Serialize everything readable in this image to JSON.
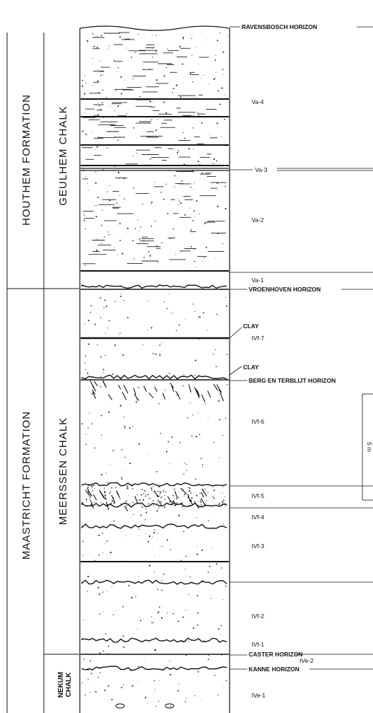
{
  "formations": {
    "houthem": "HOUTHEM FORMATION",
    "maastricht": "MAASTRICHT FORMATION"
  },
  "members": {
    "geulhem": "GEULHEM CHALK",
    "meerssen": "MEERSSEN CHALK",
    "nekum_line1": "NEKUM",
    "nekum_line2": "CHALK"
  },
  "horizons": {
    "ravensbosch": "RAVENSBOSCH HORIZON",
    "vroenhoven": "VROENHOVEN HORIZON",
    "berg_en_terblijt": "BERG EN TERBLIJT HORIZON",
    "caster": "CASTER HORIZON",
    "kanne": "KANNE HORIZON"
  },
  "units": {
    "va4": "Va-4",
    "va3": "Va-3",
    "va2": "Va-2",
    "va1": "Va-1",
    "ivf7": "IVf-7",
    "ivf6": "IVf-6",
    "ivf5": "IVf-5",
    "ivf4": "IVf-4",
    "ivf3": "IVf-3",
    "ivf2": "IVf-2",
    "ivf1": "IVf-1",
    "ive2": "IVe-2",
    "ive1": "IVe-1"
  },
  "clay_labels": {
    "upper": "CLAY",
    "lower": "CLAY"
  },
  "scale_bar": {
    "label": "5 m"
  }
}
